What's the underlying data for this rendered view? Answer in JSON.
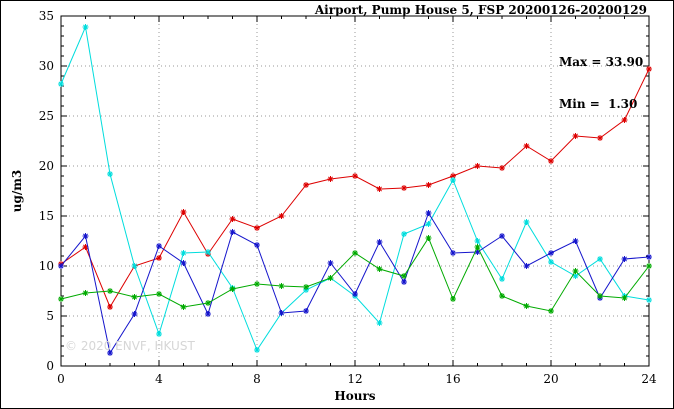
{
  "title": "Airport, Pump House 5, FSP 20200126-20200129",
  "annotation": {
    "max_label": "Max = 33.90",
    "min_label": "Min =  1.30"
  },
  "watermark": "© 2020 ENVF, HKUST",
  "chart_data": {
    "type": "line",
    "title": "Airport, Pump House 5, FSP 20200126-20200129",
    "xlabel": "Hours",
    "ylabel": "ug/m3",
    "xlim": [
      0,
      24
    ],
    "ylim": [
      0,
      35
    ],
    "xticks": [
      0,
      4,
      8,
      12,
      16,
      20,
      24
    ],
    "yticks": [
      0,
      5,
      10,
      15,
      20,
      25,
      30,
      35
    ],
    "minor_x_step": 1,
    "minor_y_step": 1,
    "grid": true,
    "legend": "none",
    "max": 33.9,
    "min": 1.3,
    "x": [
      0,
      1,
      2,
      3,
      4,
      5,
      6,
      7,
      8,
      9,
      10,
      11,
      12,
      13,
      14,
      15,
      16,
      17,
      18,
      19,
      20,
      21,
      22,
      23,
      24
    ],
    "series": [
      {
        "name": "red",
        "color": "#dd0000",
        "values": [
          10.2,
          11.9,
          5.9,
          10.0,
          10.8,
          15.4,
          11.2,
          14.7,
          13.8,
          15.0,
          18.1,
          18.7,
          19.0,
          17.7,
          17.8,
          18.1,
          19.0,
          20.0,
          19.8,
          22.0,
          20.5,
          23.0,
          22.8,
          24.6,
          29.7
        ]
      },
      {
        "name": "cyan",
        "color": "#00dddd",
        "values": [
          28.2,
          33.9,
          19.2,
          10.0,
          3.2,
          11.3,
          11.4,
          7.8,
          1.6,
          5.3,
          7.6,
          8.8,
          7.0,
          4.3,
          13.2,
          14.2,
          18.6,
          12.5,
          8.7,
          14.4,
          10.4,
          9.0,
          10.7,
          7.0,
          6.6
        ]
      },
      {
        "name": "blue",
        "color": "#1515cc",
        "values": [
          10.0,
          13.0,
          1.3,
          5.2,
          12.0,
          10.3,
          5.2,
          13.4,
          12.1,
          5.3,
          5.5,
          10.3,
          7.2,
          12.4,
          8.4,
          15.3,
          11.3,
          11.4,
          13.0,
          10.0,
          11.3,
          12.5,
          6.8,
          10.7,
          10.9
        ]
      },
      {
        "name": "green",
        "color": "#00aa00",
        "values": [
          6.7,
          7.3,
          7.5,
          6.9,
          7.2,
          5.9,
          6.3,
          7.7,
          8.2,
          8.0,
          7.9,
          8.8,
          11.3,
          9.7,
          9.0,
          12.8,
          6.7,
          11.9,
          7.0,
          6.0,
          5.5,
          9.5,
          7.0,
          6.8,
          10.0
        ]
      }
    ]
  }
}
